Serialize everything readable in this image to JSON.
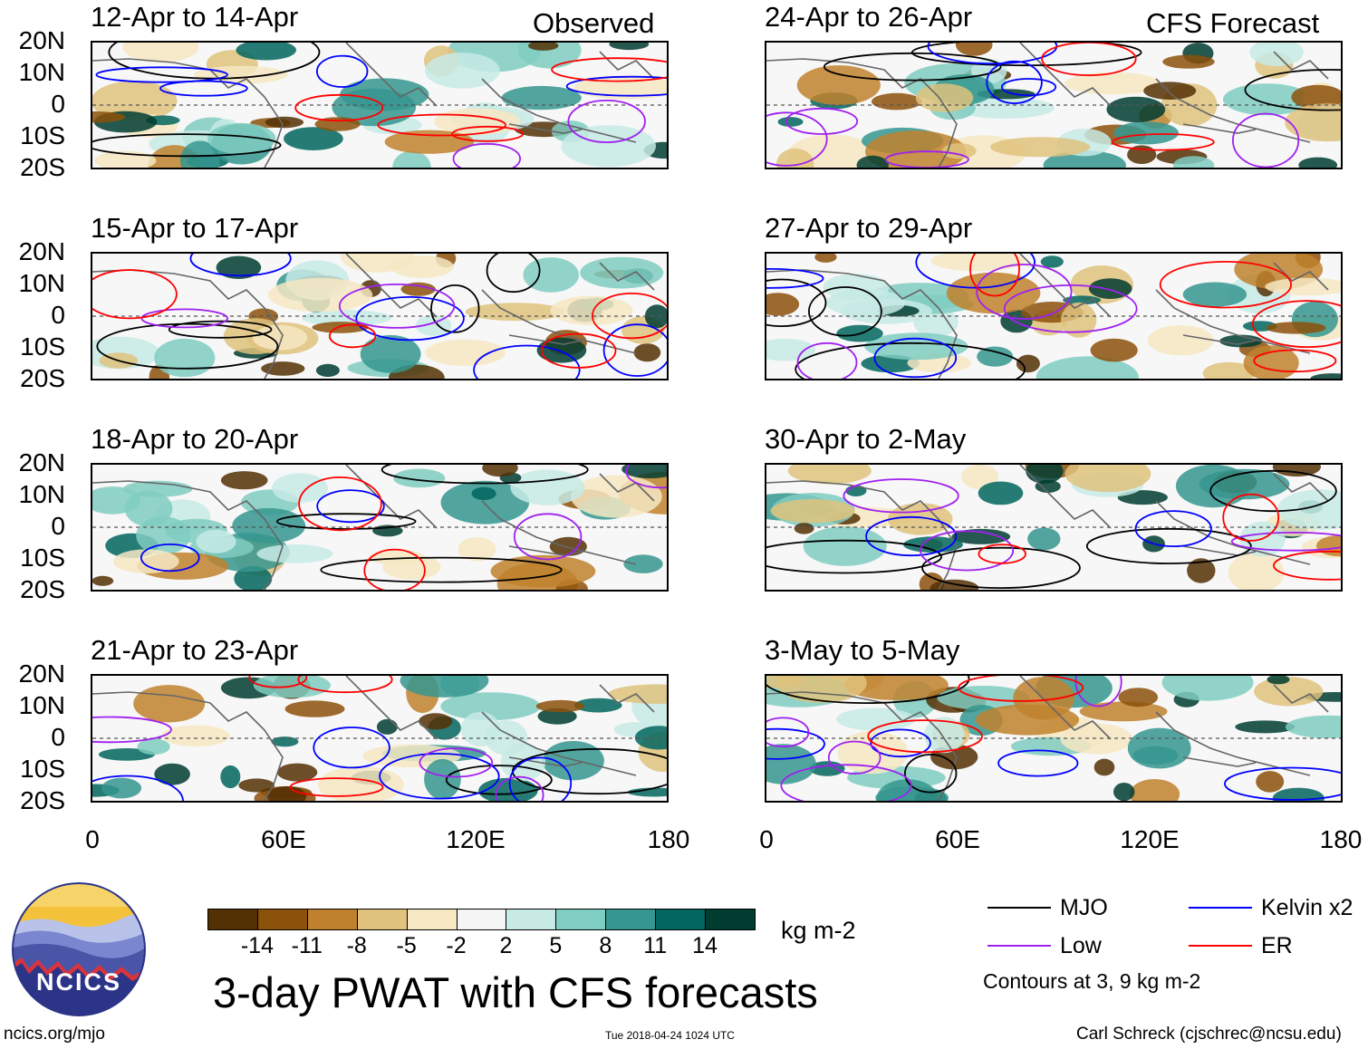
{
  "chart_data": {
    "type": "heatmap",
    "title": "3-day PWAT with CFS forecasts",
    "variable": "PWAT anomaly",
    "units": "kg m-2",
    "y_tick_labels": [
      "20N",
      "10N",
      "0",
      "10S",
      "20S"
    ],
    "x_tick_labels": [
      "0",
      "60E",
      "120E",
      "180"
    ],
    "ylim": [
      -20,
      20
    ],
    "xlim": [
      0,
      180
    ],
    "columns": [
      {
        "header": "Observed",
        "panels": [
          {
            "period": "12-Apr to 14-Apr"
          },
          {
            "period": "15-Apr to 17-Apr"
          },
          {
            "period": "18-Apr to 20-Apr"
          },
          {
            "period": "21-Apr to 23-Apr"
          }
        ]
      },
      {
        "header": "CFS Forecast",
        "panels": [
          {
            "period": "24-Apr to 26-Apr"
          },
          {
            "period": "27-Apr to 29-Apr"
          },
          {
            "period": "30-Apr to 2-May"
          },
          {
            "period": "3-May to 5-May"
          }
        ]
      }
    ],
    "colorbar": {
      "ticks": [
        "-14",
        "-11",
        "-8",
        "-5",
        "-2",
        "2",
        "5",
        "8",
        "11",
        "14"
      ],
      "colors": [
        "#543005",
        "#8c510a",
        "#bf812d",
        "#dfc27d",
        "#f6e8c3",
        "#f5f5f5",
        "#c7eae5",
        "#80cdc1",
        "#35978f",
        "#01665e",
        "#003c30"
      ],
      "units": "kg m-2"
    },
    "legend": [
      {
        "label": "MJO",
        "color": "#000000"
      },
      {
        "label": "Kelvin x2",
        "color": "#0000ff"
      },
      {
        "label": "Low",
        "color": "#a020f0"
      },
      {
        "label": "ER",
        "color": "#ff0000"
      }
    ],
    "contour_note": "Contours at 3, 9 kg m-2"
  },
  "footer": {
    "logo_text": "NCICS",
    "url": "ncics.org/mjo",
    "timestamp": "Tue 2018-04-24 1024 UTC",
    "credit": "Carl Schreck (cjschrec@ncsu.edu)"
  }
}
